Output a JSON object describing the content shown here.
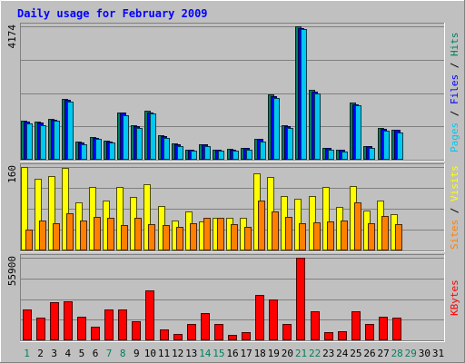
{
  "chart_data": {
    "type": "bar",
    "title": "Daily usage for February 2009",
    "days": [
      "1",
      "2",
      "3",
      "4",
      "5",
      "6",
      "7",
      "8",
      "9",
      "10",
      "11",
      "12",
      "13",
      "14",
      "15",
      "16",
      "17",
      "18",
      "19",
      "20",
      "21",
      "22",
      "23",
      "24",
      "25",
      "26",
      "27",
      "28",
      "29",
      "30",
      "31"
    ],
    "weekend_days": [
      "1",
      "7",
      "8",
      "14",
      "15",
      "21",
      "22",
      "28",
      "29"
    ],
    "panels": [
      {
        "id": "pages-files",
        "max_label": "4174",
        "ymax": 4174,
        "side_label": [
          "Pages",
          "Files",
          "Hits"
        ],
        "series": [
          {
            "name": "Hits",
            "color": "#00805c",
            "values": [
              1210,
              1190,
              1280,
              1900,
              560,
              700,
              590,
              1490,
              1070,
              1520,
              760,
              500,
              320,
              480,
              310,
              330,
              380,
              650,
              2040,
              1070,
              4174,
              2180,
              380,
              310,
              1780,
              440,
              980,
              950
            ]
          },
          {
            "name": "Files",
            "color": "#0000ff",
            "values": [
              1190,
              1170,
              1260,
              1870,
              550,
              690,
              580,
              1470,
              1050,
              1490,
              740,
              490,
              310,
              470,
              300,
              320,
              370,
              640,
              2000,
              1050,
              4120,
              2140,
              370,
              300,
              1740,
              430,
              960,
              930
            ]
          },
          {
            "name": "Pages",
            "color": "#00c8f0",
            "values": [
              1130,
              1080,
              1220,
              1820,
              470,
              640,
              530,
              1380,
              980,
              1440,
              680,
              430,
              270,
              420,
              270,
              280,
              320,
              560,
              1940,
              990,
              4100,
              2080,
              320,
              260,
              1700,
              360,
              900,
              860
            ]
          }
        ]
      },
      {
        "id": "visits-sites",
        "max_label": "160",
        "ymax": 160,
        "side_label": [
          "Sites",
          "Visits"
        ],
        "series": [
          {
            "name": "Visits",
            "color": "#ffff00",
            "values": [
              160,
              137,
              143,
              158,
              93,
              121,
              95,
              121,
              102,
              127,
              85,
              57,
              75,
              56,
              63,
              63,
              62,
              148,
              140,
              104,
              99,
              105,
              122,
              84,
              124,
              76,
              96,
              69
            ]
          },
          {
            "name": "Sites",
            "color": "#ff8000",
            "values": [
              40,
              58,
              53,
              72,
              57,
              64,
              62,
              48,
              63,
              50,
              48,
              45,
              52,
              63,
              62,
              50,
              45,
              95,
              75,
              64,
              53,
              54,
              55,
              57,
              92,
              53,
              66,
              50
            ]
          }
        ]
      },
      {
        "id": "kbytes",
        "max_label": "55900",
        "ymax": 55900,
        "side_label": [
          "KBytes"
        ],
        "series": [
          {
            "name": "KBytes",
            "color": "#ff0000",
            "values": [
              21000,
              15200,
              26000,
              26500,
              16100,
              9400,
              20900,
              20900,
              12900,
              33800,
              7500,
              4300,
              11300,
              18200,
              10800,
              3400,
              5300,
              31000,
              27400,
              11000,
              55900,
              19900,
              5700,
              6000,
              19700,
              11300,
              16000,
              15300
            ]
          }
        ]
      }
    ]
  }
}
